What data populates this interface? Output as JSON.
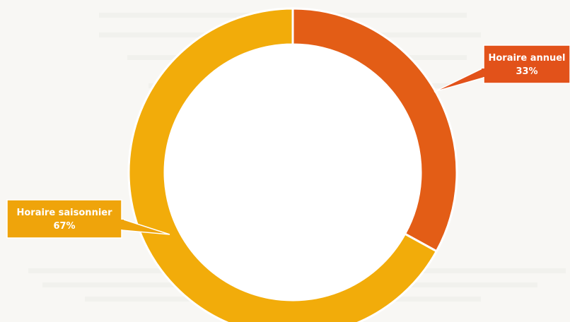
{
  "chart_data": {
    "type": "pie",
    "variant": "donut",
    "slices": [
      {
        "label": "Horaire annuel",
        "value_label": "33%",
        "value": 33,
        "color": "#e35d16",
        "label_box_color": "#e2521a"
      },
      {
        "label": "Horaire saisonnier",
        "value_label": "67%",
        "value": 67,
        "color": "#f2ac0a",
        "label_box_color": "#efa40b"
      }
    ],
    "background": "#f8f7f4",
    "title": "",
    "legend": "none"
  }
}
